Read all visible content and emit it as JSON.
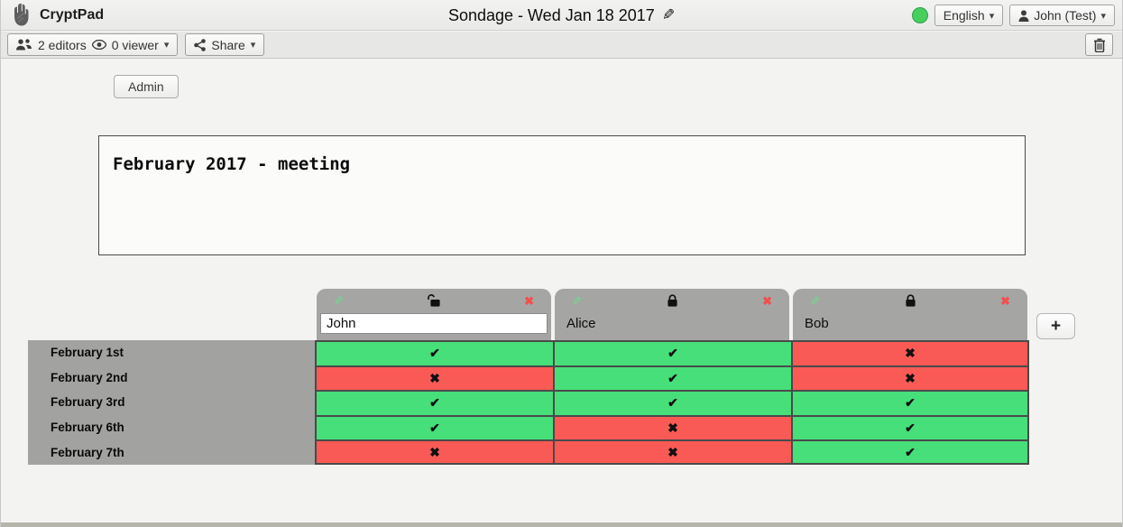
{
  "topbar": {
    "app_name": "CryptPad",
    "doc_title": "Sondage - Wed Jan 18 2017",
    "language_label": "English",
    "user_label": "John (Test)",
    "status_color": "#47cf5e"
  },
  "toolbar": {
    "editors_label": "2 editors",
    "viewer_label": "0 viewer",
    "share_label": "Share"
  },
  "admin_label": "Admin",
  "description_text": "February 2017 - meeting",
  "poll": {
    "add_column_label": "+",
    "columns": [
      {
        "name": "John",
        "editable": true,
        "locked": false
      },
      {
        "name": "Alice",
        "editable": false,
        "locked": true
      },
      {
        "name": "Bob",
        "editable": false,
        "locked": true
      }
    ],
    "rows": [
      {
        "label": "February 1st",
        "votes": [
          "yes",
          "yes",
          "no"
        ]
      },
      {
        "label": "February 2nd",
        "votes": [
          "no",
          "yes",
          "no"
        ]
      },
      {
        "label": "February 3rd",
        "votes": [
          "yes",
          "yes",
          "yes"
        ]
      },
      {
        "label": "February 6th",
        "votes": [
          "yes",
          "no",
          "yes"
        ]
      },
      {
        "label": "February 7th",
        "votes": [
          "no",
          "no",
          "yes"
        ]
      }
    ],
    "marks": {
      "yes": "✔",
      "no": "✖"
    },
    "colors": {
      "yes": "#46df79",
      "no": "#f95a55"
    }
  },
  "glyphs": {
    "caret": "▾",
    "pencil": "✎",
    "cross": "✖"
  }
}
